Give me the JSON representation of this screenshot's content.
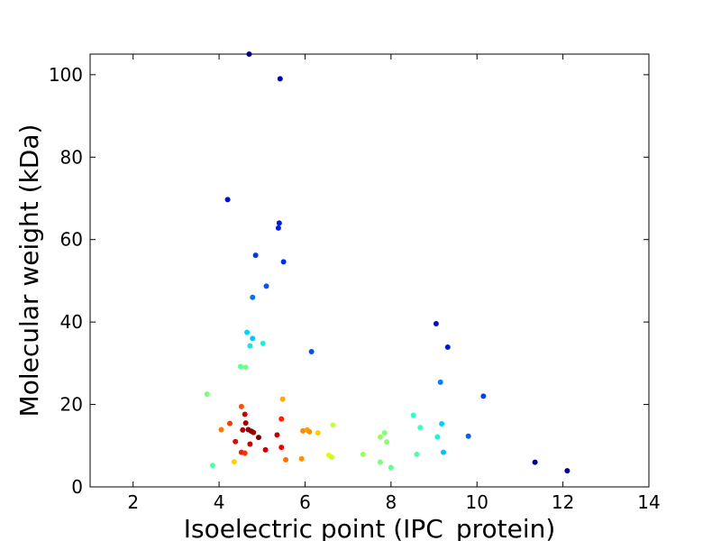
{
  "chart_data": {
    "type": "scatter",
    "xlabel": "Isoelectric point (IPC_protein)",
    "ylabel": "Molecular weight (kDa)",
    "xlim": [
      1,
      14
    ],
    "ylim": [
      0,
      105
    ],
    "xticks": [
      2,
      4,
      6,
      8,
      10,
      12,
      14
    ],
    "yticks": [
      0,
      20,
      40,
      60,
      80,
      100
    ],
    "grid": false,
    "colormap": "jet (point density)",
    "points": [
      {
        "x": 4.7,
        "y": 105.0,
        "color": "#0000a8"
      },
      {
        "x": 5.42,
        "y": 99.0,
        "color": "#0000b4"
      },
      {
        "x": 4.2,
        "y": 69.7,
        "color": "#0010d0"
      },
      {
        "x": 5.4,
        "y": 64.0,
        "color": "#0018e0"
      },
      {
        "x": 5.38,
        "y": 62.8,
        "color": "#0020e8"
      },
      {
        "x": 4.85,
        "y": 56.2,
        "color": "#0038f0"
      },
      {
        "x": 5.5,
        "y": 54.6,
        "color": "#0030ec"
      },
      {
        "x": 5.1,
        "y": 48.7,
        "color": "#0058f8"
      },
      {
        "x": 4.78,
        "y": 46.0,
        "color": "#0070fc"
      },
      {
        "x": 9.05,
        "y": 39.6,
        "color": "#0010cc"
      },
      {
        "x": 4.65,
        "y": 37.5,
        "color": "#00d4ff"
      },
      {
        "x": 4.78,
        "y": 36.0,
        "color": "#00c8ff"
      },
      {
        "x": 4.72,
        "y": 34.2,
        "color": "#10e8e0"
      },
      {
        "x": 5.02,
        "y": 34.8,
        "color": "#18f0d8"
      },
      {
        "x": 9.32,
        "y": 33.9,
        "color": "#0018d8"
      },
      {
        "x": 6.15,
        "y": 32.8,
        "color": "#0050f8"
      },
      {
        "x": 4.5,
        "y": 29.2,
        "color": "#60ff98"
      },
      {
        "x": 4.62,
        "y": 29.0,
        "color": "#70ff88"
      },
      {
        "x": 9.15,
        "y": 25.4,
        "color": "#0080ff"
      },
      {
        "x": 3.72,
        "y": 22.5,
        "color": "#78ff80"
      },
      {
        "x": 10.15,
        "y": 22.0,
        "color": "#0040f0"
      },
      {
        "x": 5.48,
        "y": 21.3,
        "color": "#ffaa00"
      },
      {
        "x": 4.52,
        "y": 19.5,
        "color": "#ff5000"
      },
      {
        "x": 4.6,
        "y": 17.6,
        "color": "#d00000"
      },
      {
        "x": 8.52,
        "y": 17.4,
        "color": "#30ffc8"
      },
      {
        "x": 5.45,
        "y": 16.5,
        "color": "#ff2000"
      },
      {
        "x": 4.62,
        "y": 15.5,
        "color": "#a00000"
      },
      {
        "x": 4.25,
        "y": 15.4,
        "color": "#ff3800"
      },
      {
        "x": 9.18,
        "y": 15.3,
        "color": "#00d0ff"
      },
      {
        "x": 6.65,
        "y": 15.0,
        "color": "#c8ff30"
      },
      {
        "x": 8.68,
        "y": 14.4,
        "color": "#40ffb8"
      },
      {
        "x": 4.05,
        "y": 13.9,
        "color": "#ff7800"
      },
      {
        "x": 4.55,
        "y": 13.8,
        "color": "#b00000"
      },
      {
        "x": 4.68,
        "y": 13.9,
        "color": "#900000"
      },
      {
        "x": 4.75,
        "y": 13.5,
        "color": "#800000"
      },
      {
        "x": 4.8,
        "y": 13.2,
        "color": "#a00000"
      },
      {
        "x": 5.95,
        "y": 13.6,
        "color": "#ff8800"
      },
      {
        "x": 6.05,
        "y": 13.8,
        "color": "#ffa000"
      },
      {
        "x": 6.1,
        "y": 13.4,
        "color": "#ff9000"
      },
      {
        "x": 6.3,
        "y": 13.1,
        "color": "#ffd000"
      },
      {
        "x": 7.85,
        "y": 13.1,
        "color": "#80ff78"
      },
      {
        "x": 5.35,
        "y": 12.6,
        "color": "#c00000"
      },
      {
        "x": 7.75,
        "y": 12.1,
        "color": "#98ff60"
      },
      {
        "x": 9.08,
        "y": 12.1,
        "color": "#20f0e0"
      },
      {
        "x": 9.8,
        "y": 12.3,
        "color": "#0060fc"
      },
      {
        "x": 4.92,
        "y": 12.0,
        "color": "#800000"
      },
      {
        "x": 4.38,
        "y": 11.0,
        "color": "#e80000"
      },
      {
        "x": 7.9,
        "y": 10.9,
        "color": "#88ff70"
      },
      {
        "x": 4.72,
        "y": 10.4,
        "color": "#d00000"
      },
      {
        "x": 5.45,
        "y": 9.6,
        "color": "#f00000"
      },
      {
        "x": 5.08,
        "y": 9.0,
        "color": "#c80000"
      },
      {
        "x": 4.52,
        "y": 8.4,
        "color": "#ff1800"
      },
      {
        "x": 4.6,
        "y": 8.2,
        "color": "#ff3000"
      },
      {
        "x": 9.22,
        "y": 8.4,
        "color": "#00c0ff"
      },
      {
        "x": 6.55,
        "y": 7.7,
        "color": "#e8f810"
      },
      {
        "x": 6.62,
        "y": 7.2,
        "color": "#c0ff38"
      },
      {
        "x": 7.35,
        "y": 7.9,
        "color": "#98ff60"
      },
      {
        "x": 8.6,
        "y": 7.9,
        "color": "#50ffa8"
      },
      {
        "x": 5.92,
        "y": 6.8,
        "color": "#ff9000"
      },
      {
        "x": 5.55,
        "y": 6.6,
        "color": "#ff7000"
      },
      {
        "x": 4.35,
        "y": 6.1,
        "color": "#ffd000"
      },
      {
        "x": 7.75,
        "y": 6.0,
        "color": "#78ff80"
      },
      {
        "x": 11.35,
        "y": 6.0,
        "color": "#000090"
      },
      {
        "x": 3.85,
        "y": 5.2,
        "color": "#50ffa8"
      },
      {
        "x": 8.0,
        "y": 4.7,
        "color": "#60ff98"
      },
      {
        "x": 12.1,
        "y": 3.9,
        "color": "#000090"
      }
    ]
  }
}
